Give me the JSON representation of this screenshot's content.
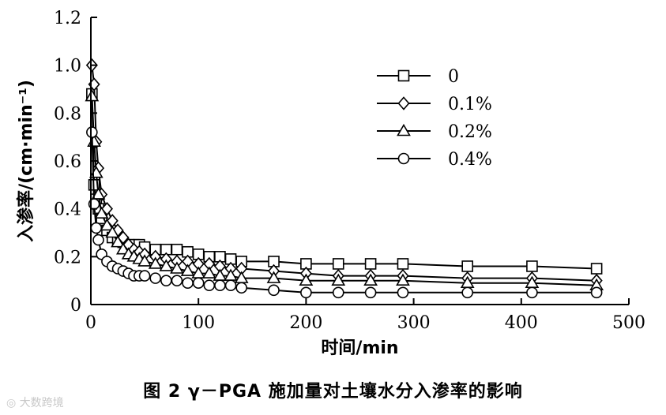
{
  "caption": "图 2   γ－PGA 施加量对土壤水分入渗率的影响",
  "watermark": "大数跨境",
  "chart_data": {
    "type": "line",
    "xlabel": "时间/min",
    "ylabel": "入渗率/(cm·min⁻¹)",
    "xlim": [
      0,
      500
    ],
    "ylim": [
      0,
      1.2
    ],
    "xticks": [
      "0",
      "100",
      "200",
      "300",
      "400",
      "500"
    ],
    "yticks": [
      "0",
      "0.2",
      "0.4",
      "0.6",
      "0.8",
      "1.0",
      "1.2"
    ],
    "grid": false,
    "legend_position": "top-right",
    "x": [
      1,
      3,
      5,
      7,
      10,
      15,
      20,
      25,
      30,
      35,
      40,
      45,
      50,
      60,
      70,
      80,
      90,
      100,
      110,
      120,
      130,
      140,
      170,
      200,
      230,
      260,
      290,
      350,
      410,
      470
    ],
    "series": [
      {
        "name": "0",
        "marker": "square",
        "values": [
          0.88,
          0.5,
          0.44,
          0.4,
          0.36,
          0.31,
          0.28,
          0.27,
          0.26,
          0.25,
          0.25,
          0.25,
          0.24,
          0.23,
          0.23,
          0.23,
          0.22,
          0.21,
          0.2,
          0.2,
          0.19,
          0.18,
          0.18,
          0.17,
          0.17,
          0.17,
          0.17,
          0.16,
          0.16,
          0.15
        ]
      },
      {
        "name": "0.1%",
        "marker": "diamond",
        "values": [
          1.0,
          0.92,
          0.68,
          0.57,
          0.46,
          0.4,
          0.35,
          0.31,
          0.28,
          0.25,
          0.23,
          0.22,
          0.21,
          0.2,
          0.19,
          0.18,
          0.18,
          0.17,
          0.17,
          0.16,
          0.15,
          0.15,
          0.14,
          0.13,
          0.12,
          0.12,
          0.12,
          0.11,
          0.11,
          0.1
        ]
      },
      {
        "name": "0.2%",
        "marker": "triangle",
        "values": [
          0.87,
          0.68,
          0.55,
          0.46,
          0.38,
          0.33,
          0.3,
          0.26,
          0.23,
          0.21,
          0.2,
          0.19,
          0.18,
          0.17,
          0.16,
          0.15,
          0.14,
          0.13,
          0.13,
          0.12,
          0.12,
          0.11,
          0.11,
          0.1,
          0.1,
          0.1,
          0.1,
          0.09,
          0.09,
          0.08
        ]
      },
      {
        "name": "0.4%",
        "marker": "circle",
        "values": [
          0.72,
          0.42,
          0.32,
          0.27,
          0.21,
          0.18,
          0.16,
          0.15,
          0.14,
          0.13,
          0.12,
          0.12,
          0.12,
          0.11,
          0.1,
          0.1,
          0.09,
          0.09,
          0.08,
          0.08,
          0.08,
          0.07,
          0.06,
          0.05,
          0.05,
          0.05,
          0.05,
          0.05,
          0.05,
          0.05
        ]
      }
    ]
  }
}
